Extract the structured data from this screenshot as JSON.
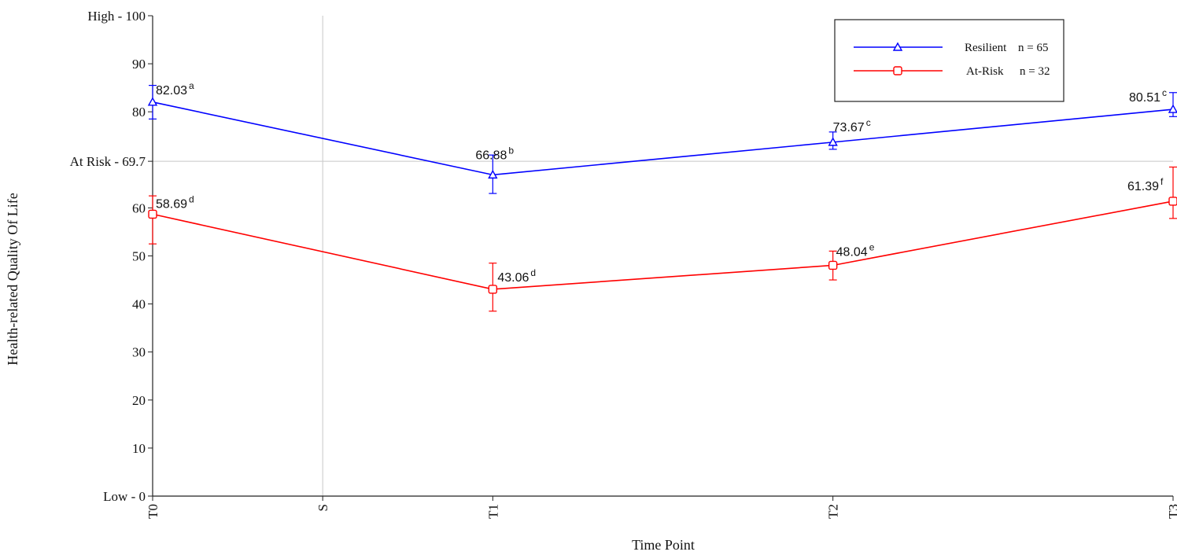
{
  "chart_data": {
    "type": "line",
    "xlabel": "Time Point",
    "ylabel": "Health-related Quality Of Life",
    "x_ticks": [
      {
        "label": "T0",
        "pos": 0
      },
      {
        "label": "S",
        "pos": 0.5
      },
      {
        "label": "T1",
        "pos": 1
      },
      {
        "label": "T2",
        "pos": 2
      },
      {
        "label": "T3",
        "pos": 3
      }
    ],
    "ylim": [
      0,
      100
    ],
    "y_ticks": [
      {
        "value": 0,
        "label": "Low - 0"
      },
      {
        "value": 10,
        "label": "10"
      },
      {
        "value": 20,
        "label": "20"
      },
      {
        "value": 30,
        "label": "30"
      },
      {
        "value": 40,
        "label": "40"
      },
      {
        "value": 50,
        "label": "50"
      },
      {
        "value": 60,
        "label": "60"
      },
      {
        "value": 69.7,
        "label": "At Risk - 69.7"
      },
      {
        "value": 80,
        "label": "80"
      },
      {
        "value": 90,
        "label": "90"
      },
      {
        "value": 100,
        "label": "High - 100"
      }
    ],
    "reference_lines": {
      "vertical_at": 0.5,
      "horizontal_at": 69.7
    },
    "grid": false,
    "legend_position": "top-right",
    "series": [
      {
        "name": "Resilient",
        "n_label": "n = 65",
        "color": "#0000ff",
        "marker": "triangle",
        "points": [
          {
            "x": 0,
            "y": 82.03,
            "label": "82.03",
            "sup": "a",
            "err_low": 78.5,
            "err_high": 85.5
          },
          {
            "x": 1,
            "y": 66.88,
            "label": "66.88",
            "sup": "b",
            "err_low": 63.0,
            "err_high": 71.0
          },
          {
            "x": 2,
            "y": 73.67,
            "label": "73.67",
            "sup": "c",
            "err_low": 72.2,
            "err_high": 75.8
          },
          {
            "x": 3,
            "y": 80.51,
            "label": "80.51",
            "sup": "c",
            "err_low": 79.0,
            "err_high": 84.0
          }
        ]
      },
      {
        "name": "At-Risk",
        "n_label": "n = 32",
        "color": "#ff0000",
        "marker": "square",
        "points": [
          {
            "x": 0,
            "y": 58.69,
            "label": "58.69",
            "sup": "d",
            "err_low": 52.5,
            "err_high": 62.5
          },
          {
            "x": 1,
            "y": 43.06,
            "label": "43.06",
            "sup": "d",
            "err_low": 38.5,
            "err_high": 48.5
          },
          {
            "x": 2,
            "y": 48.04,
            "label": "48.04",
            "sup": "e",
            "err_low": 45.0,
            "err_high": 51.0
          },
          {
            "x": 3,
            "y": 61.39,
            "label": "61.39",
            "sup": "f",
            "err_low": 57.8,
            "err_high": 68.5
          }
        ]
      }
    ]
  }
}
